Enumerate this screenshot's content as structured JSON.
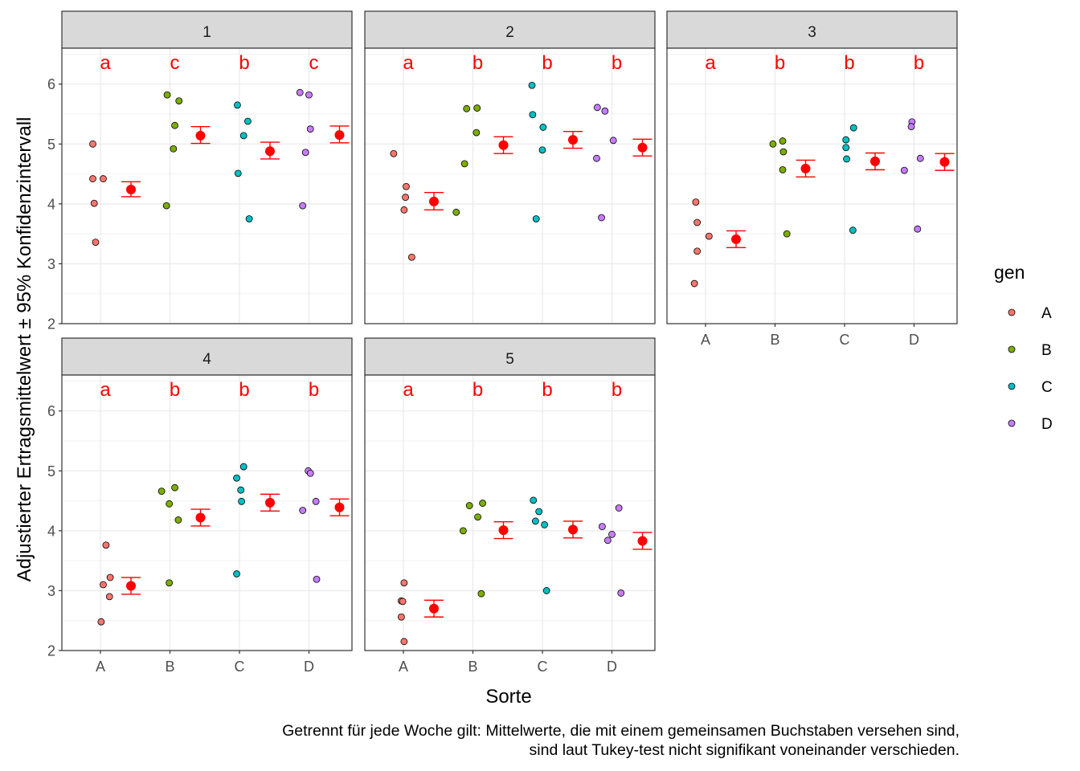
{
  "chart_data": {
    "type": "scatter",
    "ylabel": "Adjustierter Ertragsmittelwert ± 95% Konfidenzintervall",
    "xlabel": "Sorte",
    "categories": [
      "A",
      "B",
      "C",
      "D"
    ],
    "ylim": [
      2,
      6.6
    ],
    "yticks": [
      2,
      3,
      4,
      5,
      6
    ],
    "grid": true,
    "legend": {
      "title": "gen",
      "position": "right",
      "entries": [
        {
          "label": "A",
          "color": "#F8766D"
        },
        {
          "label": "B",
          "color": "#7CAE00"
        },
        {
          "label": "C",
          "color": "#00BFC4"
        },
        {
          "label": "D",
          "color": "#C77CFF"
        }
      ]
    },
    "mean_color": "#FF0000",
    "caption": [
      "Getrennt für jede Woche gilt: Mittelwerte, die mit einem gemeinsamen Buchstaben versehen sind,",
      "sind laut Tukey-test nicht signifikant voneinander verschieden."
    ],
    "panels": [
      {
        "title": "1",
        "letters": [
          "a",
          "c",
          "b",
          "c"
        ],
        "means": [
          {
            "mean": 4.24,
            "lower": 4.12,
            "upper": 4.37
          },
          {
            "mean": 5.14,
            "lower": 5.01,
            "upper": 5.29
          },
          {
            "mean": 4.88,
            "lower": 4.75,
            "upper": 5.03
          },
          {
            "mean": 5.15,
            "lower": 5.02,
            "upper": 5.3
          }
        ],
        "points": [
          [
            {
              "dx": -0.11,
              "y": 5.0
            },
            {
              "dx": -0.11,
              "y": 4.42
            },
            {
              "dx": 0.04,
              "y": 4.42
            },
            {
              "dx": -0.09,
              "y": 4.01
            },
            {
              "dx": -0.07,
              "y": 3.36
            }
          ],
          [
            {
              "dx": -0.04,
              "y": 5.82
            },
            {
              "dx": 0.13,
              "y": 5.72
            },
            {
              "dx": 0.07,
              "y": 5.31
            },
            {
              "dx": 0.05,
              "y": 4.92
            },
            {
              "dx": -0.05,
              "y": 3.97
            }
          ],
          [
            {
              "dx": -0.03,
              "y": 5.65
            },
            {
              "dx": 0.12,
              "y": 5.38
            },
            {
              "dx": 0.06,
              "y": 5.14
            },
            {
              "dx": -0.02,
              "y": 4.51
            },
            {
              "dx": 0.14,
              "y": 3.75
            }
          ],
          [
            {
              "dx": -0.13,
              "y": 5.86
            },
            {
              "dx": 0.0,
              "y": 5.82
            },
            {
              "dx": 0.02,
              "y": 5.25
            },
            {
              "dx": -0.05,
              "y": 4.86
            },
            {
              "dx": -0.09,
              "y": 3.97
            }
          ]
        ]
      },
      {
        "title": "2",
        "letters": [
          "a",
          "b",
          "b",
          "b"
        ],
        "means": [
          {
            "mean": 4.04,
            "lower": 3.9,
            "upper": 4.19
          },
          {
            "mean": 4.98,
            "lower": 4.84,
            "upper": 5.12
          },
          {
            "mean": 5.07,
            "lower": 4.93,
            "upper": 5.21
          },
          {
            "mean": 4.94,
            "lower": 4.8,
            "upper": 5.08
          }
        ],
        "points": [
          [
            {
              "dx": -0.14,
              "y": 4.84
            },
            {
              "dx": 0.04,
              "y": 4.29
            },
            {
              "dx": 0.03,
              "y": 4.11
            },
            {
              "dx": 0.01,
              "y": 3.9
            },
            {
              "dx": 0.12,
              "y": 3.11
            }
          ],
          [
            {
              "dx": -0.09,
              "y": 5.59
            },
            {
              "dx": 0.06,
              "y": 5.6
            },
            {
              "dx": 0.05,
              "y": 5.19
            },
            {
              "dx": -0.12,
              "y": 4.67
            },
            {
              "dx": -0.24,
              "y": 3.86
            }
          ],
          [
            {
              "dx": -0.15,
              "y": 5.98
            },
            {
              "dx": -0.14,
              "y": 5.49
            },
            {
              "dx": 0.01,
              "y": 5.28
            },
            {
              "dx": 0.0,
              "y": 4.9
            },
            {
              "dx": -0.09,
              "y": 3.75
            }
          ],
          [
            {
              "dx": -0.21,
              "y": 5.61
            },
            {
              "dx": -0.1,
              "y": 5.55
            },
            {
              "dx": 0.02,
              "y": 5.06
            },
            {
              "dx": -0.22,
              "y": 4.76
            },
            {
              "dx": -0.15,
              "y": 3.77
            }
          ]
        ]
      },
      {
        "title": "3",
        "letters": [
          "a",
          "b",
          "b",
          "b"
        ],
        "means": [
          {
            "mean": 3.41,
            "lower": 3.27,
            "upper": 3.55
          },
          {
            "mean": 4.59,
            "lower": 4.45,
            "upper": 4.73
          },
          {
            "mean": 4.71,
            "lower": 4.57,
            "upper": 4.85
          },
          {
            "mean": 4.7,
            "lower": 4.56,
            "upper": 4.84
          }
        ],
        "points": [
          [
            {
              "dx": -0.14,
              "y": 4.03
            },
            {
              "dx": -0.12,
              "y": 3.69
            },
            {
              "dx": 0.05,
              "y": 3.46
            },
            {
              "dx": -0.12,
              "y": 3.21
            },
            {
              "dx": -0.16,
              "y": 2.67
            }
          ],
          [
            {
              "dx": 0.11,
              "y": 5.05
            },
            {
              "dx": -0.03,
              "y": 5.0
            },
            {
              "dx": 0.12,
              "y": 4.87
            },
            {
              "dx": 0.11,
              "y": 4.57
            },
            {
              "dx": 0.17,
              "y": 3.5
            }
          ],
          [
            {
              "dx": 0.13,
              "y": 5.27
            },
            {
              "dx": 0.02,
              "y": 5.07
            },
            {
              "dx": 0.02,
              "y": 4.94
            },
            {
              "dx": 0.03,
              "y": 4.75
            },
            {
              "dx": 0.12,
              "y": 3.56
            }
          ],
          [
            {
              "dx": -0.03,
              "y": 5.37
            },
            {
              "dx": -0.04,
              "y": 5.29
            },
            {
              "dx": 0.09,
              "y": 4.76
            },
            {
              "dx": -0.14,
              "y": 4.56
            },
            {
              "dx": 0.05,
              "y": 3.58
            }
          ]
        ]
      },
      {
        "title": "4",
        "letters": [
          "a",
          "b",
          "b",
          "b"
        ],
        "means": [
          {
            "mean": 3.08,
            "lower": 2.94,
            "upper": 3.22
          },
          {
            "mean": 4.22,
            "lower": 4.08,
            "upper": 4.36
          },
          {
            "mean": 4.47,
            "lower": 4.33,
            "upper": 4.61
          },
          {
            "mean": 4.39,
            "lower": 4.25,
            "upper": 4.53
          }
        ],
        "points": [
          [
            {
              "dx": 0.08,
              "y": 3.76
            },
            {
              "dx": 0.14,
              "y": 3.22
            },
            {
              "dx": 0.04,
              "y": 3.1
            },
            {
              "dx": 0.13,
              "y": 2.9
            },
            {
              "dx": 0.01,
              "y": 2.48
            }
          ],
          [
            {
              "dx": 0.07,
              "y": 4.72
            },
            {
              "dx": -0.12,
              "y": 4.66
            },
            {
              "dx": -0.01,
              "y": 4.45
            },
            {
              "dx": 0.12,
              "y": 4.18
            },
            {
              "dx": -0.01,
              "y": 3.13
            }
          ],
          [
            {
              "dx": 0.06,
              "y": 5.07
            },
            {
              "dx": -0.04,
              "y": 4.88
            },
            {
              "dx": 0.02,
              "y": 4.68
            },
            {
              "dx": 0.03,
              "y": 4.49
            },
            {
              "dx": -0.04,
              "y": 3.28
            }
          ],
          [
            {
              "dx": -0.01,
              "y": 5.0
            },
            {
              "dx": 0.02,
              "y": 4.96
            },
            {
              "dx": 0.1,
              "y": 4.49
            },
            {
              "dx": -0.09,
              "y": 4.34
            },
            {
              "dx": 0.11,
              "y": 3.19
            }
          ]
        ]
      },
      {
        "title": "5",
        "letters": [
          "a",
          "b",
          "b",
          "b"
        ],
        "means": [
          {
            "mean": 2.7,
            "lower": 2.56,
            "upper": 2.84
          },
          {
            "mean": 4.01,
            "lower": 3.87,
            "upper": 4.15
          },
          {
            "mean": 4.02,
            "lower": 3.88,
            "upper": 4.16
          },
          {
            "mean": 3.83,
            "lower": 3.69,
            "upper": 3.97
          }
        ],
        "points": [
          [
            {
              "dx": 0.01,
              "y": 3.13
            },
            {
              "dx": -0.03,
              "y": 2.83
            },
            {
              "dx": -0.01,
              "y": 2.82
            },
            {
              "dx": -0.03,
              "y": 2.56
            },
            {
              "dx": 0.01,
              "y": 2.15
            }
          ],
          [
            {
              "dx": 0.14,
              "y": 4.46
            },
            {
              "dx": -0.05,
              "y": 4.42
            },
            {
              "dx": 0.07,
              "y": 4.23
            },
            {
              "dx": -0.14,
              "y": 4.0
            },
            {
              "dx": 0.12,
              "y": 2.95
            }
          ],
          [
            {
              "dx": -0.13,
              "y": 4.51
            },
            {
              "dx": -0.05,
              "y": 4.32
            },
            {
              "dx": -0.1,
              "y": 4.16
            },
            {
              "dx": 0.03,
              "y": 4.1
            },
            {
              "dx": 0.06,
              "y": 3.0
            }
          ],
          [
            {
              "dx": 0.1,
              "y": 4.38
            },
            {
              "dx": -0.14,
              "y": 4.07
            },
            {
              "dx": 0.0,
              "y": 3.94
            },
            {
              "dx": -0.06,
              "y": 3.84
            },
            {
              "dx": 0.13,
              "y": 2.96
            }
          ]
        ]
      }
    ]
  }
}
